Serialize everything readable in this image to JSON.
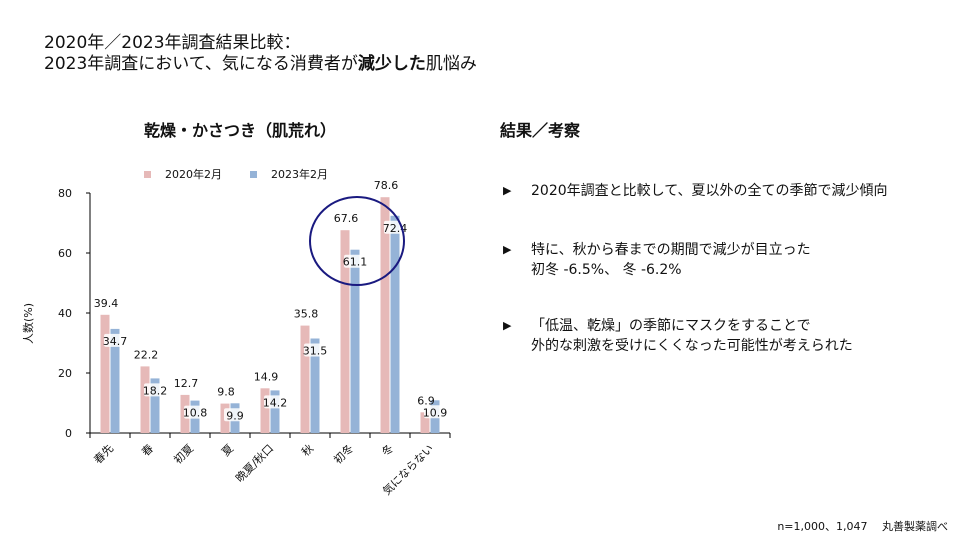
{
  "header": {
    "title_line1": "2020年／2023年調査結果比較：",
    "title_line2_pre": "2023年調査において、気になる消費者が",
    "title_line2_bold": "減少した",
    "title_line2_post": "肌悩み"
  },
  "chart_panel": {
    "title": "乾燥・かさつき（肌荒れ）",
    "legend": [
      {
        "label": "2020年2月",
        "color": "#E6B9B8"
      },
      {
        "label": "2023年2月",
        "color": "#95B3D7"
      }
    ],
    "ylabel": "人数(%)"
  },
  "chart_data": {
    "type": "bar",
    "title": "乾燥・かさつき（肌荒れ）",
    "xlabel": "",
    "ylabel": "人数(%)",
    "ylim": [
      0,
      80
    ],
    "yticks": [
      0,
      20,
      40,
      60,
      80
    ],
    "grid": false,
    "legend_position": "top",
    "categories": [
      "春先",
      "春",
      "初夏",
      "夏",
      "晩夏/秋口",
      "秋",
      "初冬",
      "冬",
      "気にならない"
    ],
    "series": [
      {
        "name": "2020年2月",
        "color": "#E6B9B8",
        "values": [
          39.4,
          22.2,
          12.7,
          9.8,
          14.9,
          35.8,
          67.6,
          78.6,
          6.9
        ]
      },
      {
        "name": "2023年2月",
        "color": "#95B3D7",
        "values": [
          34.7,
          18.2,
          10.8,
          9.9,
          14.2,
          31.5,
          61.1,
          72.4,
          10.9
        ]
      }
    ],
    "annotations": [
      {
        "type": "circle",
        "target": "初冬",
        "color": "#1A1A80"
      }
    ]
  },
  "results": {
    "title": "結果／考察",
    "bullet_glyph": "▶",
    "bullets": [
      {
        "lines": [
          "2020年調査と比較して、夏以外の全ての季節で減少傾向"
        ]
      },
      {
        "lines": [
          "特に、秋から春までの期間で減少が目立った",
          "初冬 -6.5%、 冬 -6.2%"
        ]
      },
      {
        "lines": [
          "「低温、乾燥」の季節にマスクをすることで",
          "外的な刺激を受けにくくなった可能性が考えられた"
        ]
      }
    ]
  },
  "footnote": "n=1,000、1,047　 丸善製薬調べ"
}
